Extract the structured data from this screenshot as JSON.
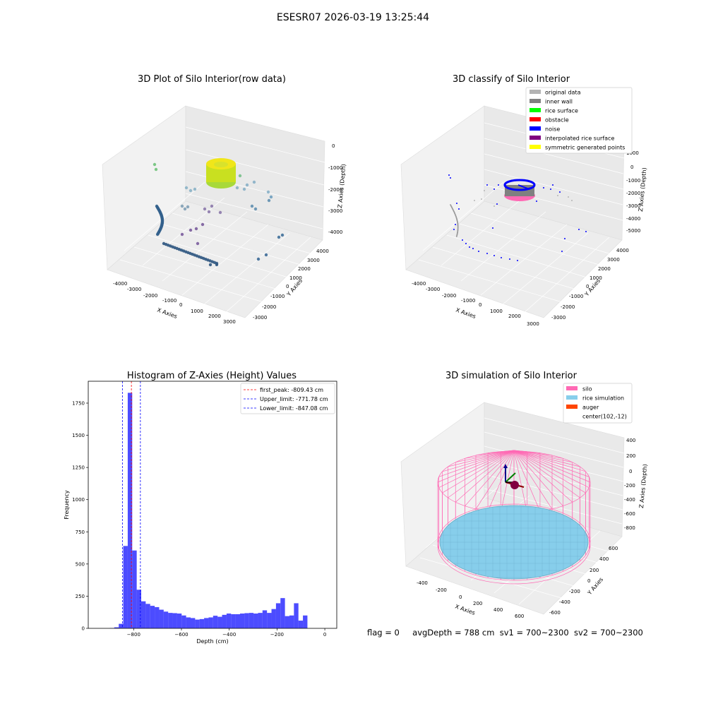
{
  "suptitle": "ESESR07 2026-03-19 13:25:44",
  "status_line": {
    "flag": "flag = 0",
    "avg_depth": "avgDepth = 788 cm",
    "sv1": "sv1 = 700~2300",
    "sv2": "sv2 = 700~2300"
  },
  "panels": {
    "raw": {
      "title": "3D Plot of Silo Interior(row data)",
      "xlabel": "X Axies",
      "ylabel": "Y Axies",
      "zlabel": "Z Axies (Depth)",
      "xticks": [
        "-4000",
        "-3000",
        "-2000",
        "-1000",
        "0",
        "1000",
        "2000",
        "3000"
      ],
      "yticks": [
        "-3000",
        "-2000",
        "-1000",
        "0",
        "1000",
        "2000",
        "3000",
        "4000"
      ],
      "zticks": [
        "0",
        "-1000",
        "-2000",
        "-3000",
        "-4000"
      ]
    },
    "classify": {
      "title": "3D classify of Silo Interior",
      "xlabel": "X Axies",
      "ylabel": "Y Axies",
      "zlabel": "Z Axies (Depth)",
      "xticks": [
        "-4000",
        "-3000",
        "-2000",
        "-1000",
        "0",
        "1000",
        "2000",
        "3000"
      ],
      "yticks": [
        "-3000",
        "-2000",
        "-1000",
        "0",
        "1000",
        "2000",
        "3000",
        "4000"
      ],
      "zticks": [
        "1000",
        "0",
        "-1000",
        "-2000",
        "-3000",
        "-4000",
        "-5000"
      ],
      "legend": [
        {
          "label": "original data",
          "color": "#b3b3b3"
        },
        {
          "label": "inner wall",
          "color": "#808080"
        },
        {
          "label": "rice surface",
          "color": "#00ff00"
        },
        {
          "label": "obstacle",
          "color": "#ff0000"
        },
        {
          "label": "noise",
          "color": "#0000ff"
        },
        {
          "label": "interpolated rice surface",
          "color": "#800080"
        },
        {
          "label": "symmetric generated points",
          "color": "#ffff00"
        }
      ]
    },
    "simulation": {
      "title": "3D simulation of Silo Interior",
      "xlabel": "X Axies",
      "ylabel": "Y Axies",
      "zlabel": "Z Axies (Depth)",
      "xticks": [
        "-400",
        "-200",
        "0",
        "200",
        "400",
        "600"
      ],
      "yticks": [
        "-600",
        "-400",
        "-200",
        "0",
        "200",
        "400",
        "600"
      ],
      "zticks": [
        "400",
        "200",
        "0",
        "-200",
        "-400",
        "-600",
        "-800"
      ],
      "legend": [
        {
          "label": "silo",
          "color": "#ff69b4"
        },
        {
          "label": "rice simulation",
          "color": "#87ceeb"
        },
        {
          "label": "auger",
          "color": "#ff4500"
        },
        {
          "label": "center(102,-12)",
          "color": ""
        }
      ]
    }
  },
  "chart_data": {
    "type": "bar",
    "title": "Histogram of Z-Axies (Height) Values",
    "xlabel": "Depth (cm)",
    "ylabel": "Frequency",
    "xlim": [
      -990,
      50
    ],
    "ylim": [
      0,
      1920
    ],
    "xticks": [
      -800,
      -600,
      -400,
      -200,
      0
    ],
    "xtick_labels": [
      "−800",
      "−600",
      "−400",
      "−200",
      "0"
    ],
    "yticks": [
      0,
      250,
      500,
      750,
      1000,
      1250,
      1500,
      1750
    ],
    "yticks_labels": [
      "0",
      "250",
      "500",
      "750",
      "1000",
      "1250",
      "1500",
      "1750"
    ],
    "bar_color": "#0000ff",
    "bin_width": 18.8,
    "bin_start": -900,
    "values": [
      2,
      8,
      35,
      640,
      1830,
      605,
      300,
      210,
      190,
      175,
      165,
      145,
      130,
      120,
      118,
      115,
      100,
      85,
      80,
      68,
      72,
      80,
      85,
      98,
      90,
      105,
      115,
      110,
      110,
      115,
      118,
      120,
      115,
      120,
      140,
      120,
      150,
      195,
      235,
      95,
      100,
      195,
      60,
      100
    ],
    "reference_lines": [
      {
        "name": "first_peak: -809.43 cm",
        "x": -809.43,
        "color": "#ff0000"
      },
      {
        "name": "Upper_limit: -771.78 cm",
        "x": -771.78,
        "color": "#0000ff"
      },
      {
        "name": "Lower_limit: -847.08 cm",
        "x": -847.08,
        "color": "#0000ff"
      }
    ],
    "legend_position": "top-right",
    "grid": false
  }
}
